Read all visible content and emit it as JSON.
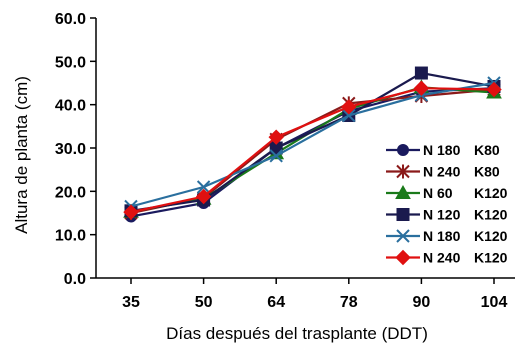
{
  "chart_data": {
    "type": "line",
    "title": "",
    "xlabel": "Días después del trasplante (DDT)",
    "ylabel": "Altura de planta (cm)",
    "x": [
      35,
      50,
      64,
      78,
      90,
      104
    ],
    "x_tick_labels": [
      "35",
      "50",
      "64",
      "78",
      "90",
      "104"
    ],
    "y_tick_labels": [
      "0.0",
      "10.0",
      "20.0",
      "30.0",
      "40.0",
      "50.0",
      "60.0"
    ],
    "ylim": [
      0,
      60
    ],
    "grid": false,
    "legend_position": "right",
    "series": [
      {
        "name": "N 180",
        "name2": "K80",
        "color": "#1a1a5e",
        "marker": "circle",
        "values": [
          14.2,
          17.3,
          30.0,
          38.5,
          43.0,
          43.8
        ]
      },
      {
        "name": "N 240",
        "name2": "K80",
        "color": "#8b1a1a",
        "marker": "star",
        "values": [
          15.0,
          18.5,
          32.0,
          40.3,
          42.0,
          43.5
        ]
      },
      {
        "name": "N 60",
        "name2": "K120",
        "color": "#1a7a1a",
        "marker": "triangle",
        "values": [
          15.3,
          18.3,
          28.8,
          39.0,
          44.0,
          42.8
        ]
      },
      {
        "name": "N 120",
        "name2": "K120",
        "color": "#1a1a4e",
        "marker": "square",
        "values": [
          15.5,
          18.0,
          30.0,
          37.5,
          47.3,
          44.2
        ]
      },
      {
        "name": "N 180",
        "name2": "K120",
        "color": "#2a6f9e",
        "marker": "x",
        "values": [
          16.5,
          21.0,
          28.2,
          37.5,
          42.2,
          45.0
        ]
      },
      {
        "name": "N 240",
        "name2": "K120",
        "color": "#e01010",
        "marker": "diamond",
        "values": [
          15.2,
          18.8,
          32.5,
          39.5,
          43.8,
          43.5
        ]
      }
    ]
  }
}
